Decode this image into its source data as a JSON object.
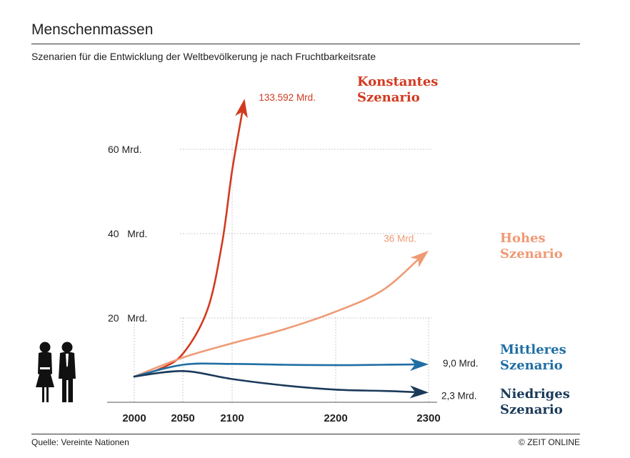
{
  "header": {
    "title": "Menschenmassen",
    "subtitle": "Szenarien für die Entwicklung der Weltbevölkerung je nach Fruchtbarkeitsrate"
  },
  "footer": {
    "source": "Quelle: Vereinte Nationen",
    "credit": "© ZEIT ONLINE"
  },
  "chart_data": {
    "type": "line",
    "title": "Menschenmassen",
    "xlabel": "",
    "ylabel": "",
    "x_ticks": [
      {
        "value": 2000,
        "label": "2000"
      },
      {
        "value": 2050,
        "label": "2050"
      },
      {
        "value": 2100,
        "label": "2100"
      },
      {
        "value": 2200,
        "label": "2200"
      },
      {
        "value": 2300,
        "label": "2300"
      }
    ],
    "y_ticks": [
      {
        "value": 20,
        "label": "20   Mrd."
      },
      {
        "value": 40,
        "label": "40   Mrd."
      },
      {
        "value": 60,
        "label": "60 Mrd."
      }
    ],
    "ylim": [
      0,
      70
    ],
    "grid": true,
    "series": [
      {
        "name": "Konstantes Szenario",
        "name_line1": "Konstantes",
        "name_line2": "Szenario",
        "color": "#d23a1f",
        "end_label": "133.592 Mrd.",
        "end_value": 133.592,
        "points": [
          [
            2000,
            6.1
          ],
          [
            2025,
            7.8
          ],
          [
            2050,
            11.5
          ],
          [
            2075,
            22
          ],
          [
            2090,
            38
          ],
          [
            2100,
            55
          ],
          [
            2112,
            72
          ]
        ]
      },
      {
        "name": "Hohes Szenario",
        "name_line1": "Hohes",
        "name_line2": "Szenario",
        "color": "#ef9a75",
        "end_label": "36 Mrd.",
        "end_value": 36,
        "points": [
          [
            2000,
            6.1
          ],
          [
            2050,
            10.6
          ],
          [
            2100,
            14.0
          ],
          [
            2150,
            17.3
          ],
          [
            2200,
            21.5
          ],
          [
            2250,
            26.5
          ],
          [
            2300,
            36
          ]
        ]
      },
      {
        "name": "Mittleres Szenario",
        "name_line1": "Mittleres",
        "name_line2": "Szenario",
        "color": "#1f6ea4",
        "end_label": "9,0 Mrd.",
        "end_value": 9.0,
        "points": [
          [
            2000,
            6.1
          ],
          [
            2050,
            8.9
          ],
          [
            2100,
            9.1
          ],
          [
            2150,
            8.9
          ],
          [
            2200,
            8.8
          ],
          [
            2250,
            8.9
          ],
          [
            2300,
            9.0
          ]
        ]
      },
      {
        "name": "Niedriges Szenario",
        "name_line1": "Niedriges",
        "name_line2": "Szenario",
        "color": "#1b3a5a",
        "end_label": "2,3 Mrd.",
        "end_value": 2.3,
        "points": [
          [
            2000,
            6.1
          ],
          [
            2050,
            7.4
          ],
          [
            2100,
            5.5
          ],
          [
            2150,
            4.0
          ],
          [
            2200,
            3.0
          ],
          [
            2250,
            2.7
          ],
          [
            2300,
            2.3
          ]
        ]
      }
    ]
  }
}
